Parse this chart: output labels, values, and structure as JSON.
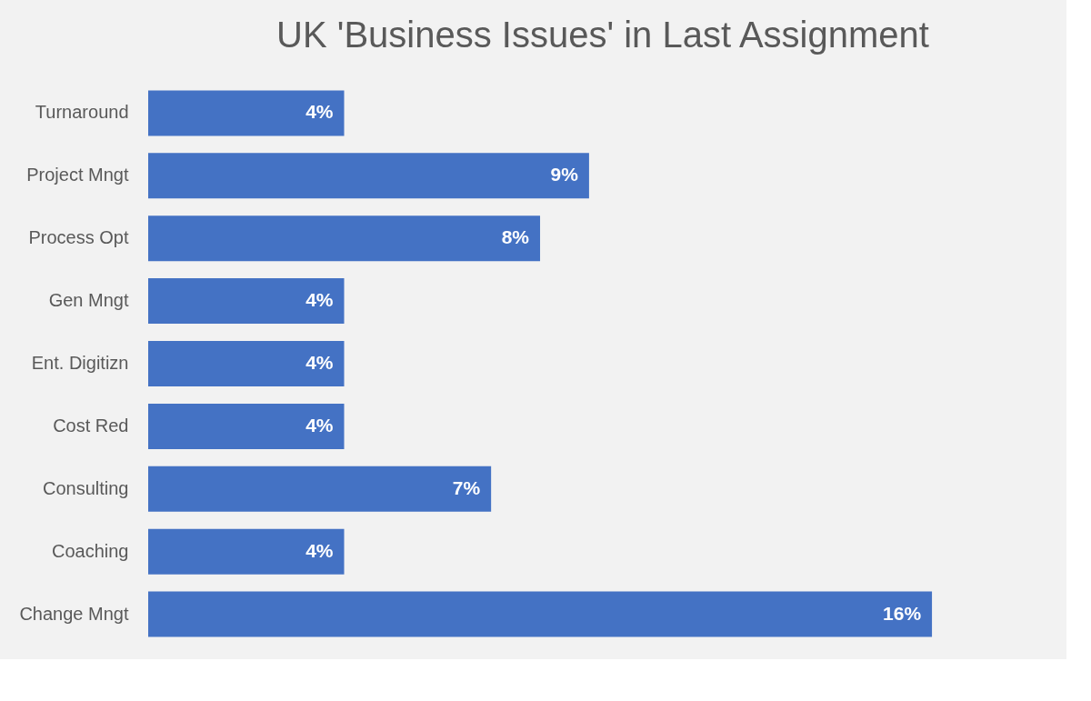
{
  "chart_data": {
    "type": "bar",
    "orientation": "horizontal",
    "title": "UK 'Business Issues' in Last Assignment",
    "categories": [
      "Turnaround",
      "Project Mngt",
      "Process Opt",
      "Gen Mngt",
      "Ent. Digitizn",
      "Cost Red",
      "Consulting",
      "Coaching",
      "Change Mngt"
    ],
    "values": [
      4,
      9,
      8,
      4,
      4,
      4,
      7,
      4,
      16
    ],
    "value_labels": [
      "4%",
      "9%",
      "8%",
      "4%",
      "4%",
      "4%",
      "7%",
      "4%",
      "16%"
    ],
    "color": "#4472c4",
    "grid": false
  }
}
